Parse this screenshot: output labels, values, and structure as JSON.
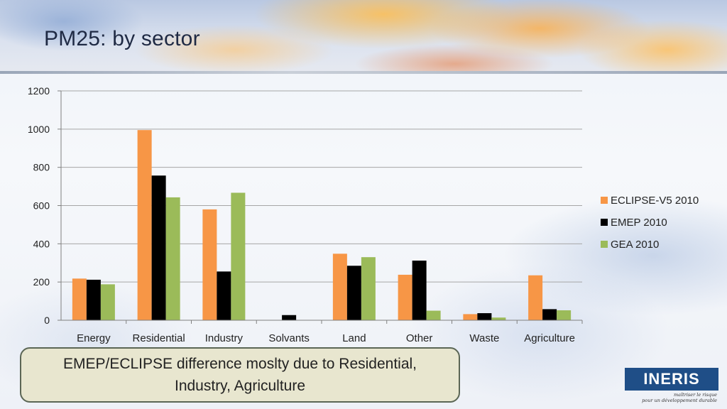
{
  "slide": {
    "title": "PM25: by sector",
    "callout": "EMEP/ECLIPSE difference moslty due to Residential, Industry, Agriculture",
    "logo": {
      "name": "INERIS",
      "tagline_1": "maîtriser le risque",
      "tagline_2": "pour un développement durable"
    }
  },
  "chart_data": {
    "type": "bar",
    "title": "",
    "xlabel": "",
    "ylabel": "",
    "ylim": [
      0,
      1200
    ],
    "yticks": [
      0,
      200,
      400,
      600,
      800,
      1000,
      1200
    ],
    "grid": true,
    "legend_position": "right",
    "categories": [
      "Energy",
      "Residential",
      "Industry",
      "Solvants",
      "Land",
      "Other",
      "Waste",
      "Agriculture"
    ],
    "series": [
      {
        "name": "ECLIPSE-V5 2010",
        "color": "#f79646",
        "values": [
          218,
          995,
          580,
          0,
          348,
          238,
          32,
          235
        ]
      },
      {
        "name": "EMEP 2010",
        "color": "#000000",
        "values": [
          212,
          757,
          255,
          27,
          285,
          312,
          37,
          58
        ]
      },
      {
        "name": "GEA 2010",
        "color": "#9bbb59",
        "values": [
          188,
          643,
          667,
          0,
          330,
          50,
          14,
          52
        ]
      }
    ]
  }
}
